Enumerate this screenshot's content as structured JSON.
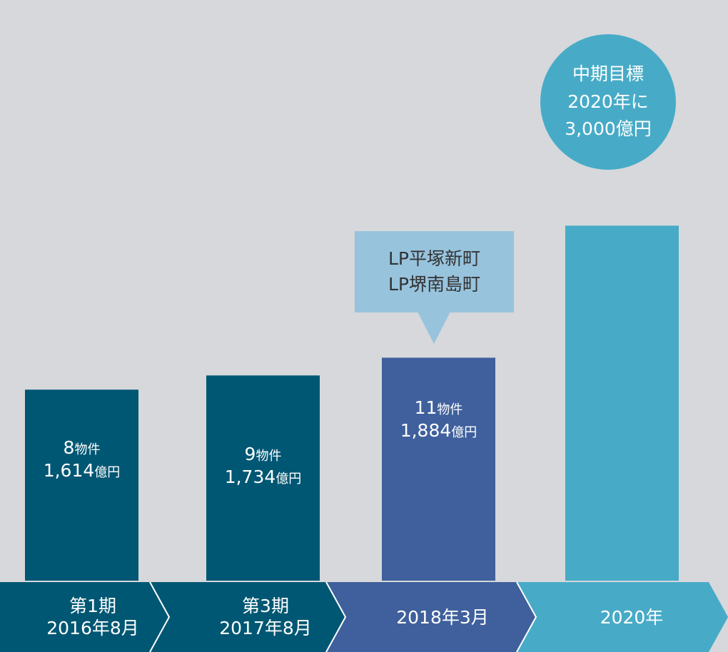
{
  "colors": {
    "background": "#d6d8db",
    "bar_dark": "#005773",
    "bar_indigo": "#3f609c",
    "bar_light": "#47abc7",
    "callout": "#97c3dd",
    "text_on_bar": "#ffffff",
    "callout_text": "#333333"
  },
  "goal": {
    "line1": "中期目標",
    "line2": "2020年に",
    "line3": "3,000億円"
  },
  "callout": {
    "line1": "LP平塚新町",
    "line2": "LP堺南島町"
  },
  "chart_data": {
    "type": "bar",
    "title": "",
    "xlabel": "",
    "ylabel": "",
    "ylim": [
      0,
      3000
    ],
    "categories": [
      {
        "line1": "第1期",
        "line2": "2016年8月"
      },
      {
        "line1": "第3期",
        "line2": "2017年8月"
      },
      {
        "line1": "2018年3月",
        "line2": ""
      },
      {
        "line1": "2020年",
        "line2": ""
      }
    ],
    "values": [
      1614,
      1734,
      1884,
      3000
    ],
    "bars": [
      {
        "count_num": "8",
        "count_unit": "物件",
        "amount_num": "1,614",
        "amount_unit": "億円",
        "color": "#005773"
      },
      {
        "count_num": "9",
        "count_unit": "物件",
        "amount_num": "1,734",
        "amount_unit": "億円",
        "color": "#005773"
      },
      {
        "count_num": "11",
        "count_unit": "物件",
        "amount_num": "1,884",
        "amount_unit": "億円",
        "color": "#3f609c"
      },
      {
        "count_num": "",
        "count_unit": "",
        "amount_num": "",
        "amount_unit": "",
        "color": "#47abc7"
      }
    ]
  }
}
